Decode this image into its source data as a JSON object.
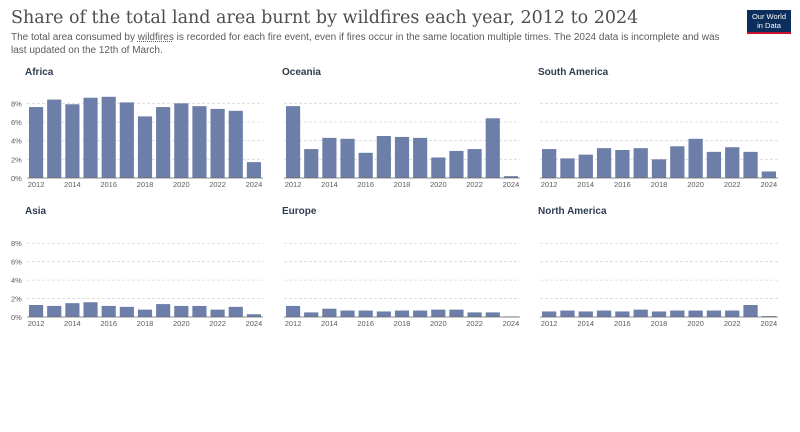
{
  "title": "Share of the total land area burnt by wildfires each year, 2012 to 2024",
  "subtitle_pre": "The total area consumed by ",
  "subtitle_link": "wildfires",
  "subtitle_post": " is recorded for each fire event, even if fires occur in the same location multiple times. The 2024 data is incomplete and was last updated on the 12th of March.",
  "logo_line1": "Our World",
  "logo_line2": "in Data",
  "colors": {
    "bar": "#6d7fa8",
    "grid": "#d9d9d9",
    "axis": "#666666",
    "panel_title": "#2d3c50",
    "tick": "#5b5b5b"
  },
  "chart_data": [
    {
      "type": "bar",
      "title": "Africa",
      "ylim": [
        0,
        9
      ],
      "yticks": [
        "0%",
        "2%",
        "4%",
        "6%",
        "8%"
      ],
      "categories": [
        "2012",
        "2013",
        "2014",
        "2015",
        "2016",
        "2017",
        "2018",
        "2019",
        "2020",
        "2021",
        "2022",
        "2023",
        "2024"
      ],
      "xtick_labels": [
        "2012",
        "2014",
        "2016",
        "2018",
        "2020",
        "2022",
        "2024"
      ],
      "values": [
        7.6,
        8.4,
        7.9,
        8.6,
        8.7,
        8.1,
        6.6,
        7.6,
        8.0,
        7.7,
        7.4,
        7.2,
        1.7
      ]
    },
    {
      "type": "bar",
      "title": "Oceania",
      "ylim": [
        0,
        9
      ],
      "yticks": [
        "0%",
        "2%",
        "4%",
        "6%",
        "8%"
      ],
      "categories": [
        "2012",
        "2013",
        "2014",
        "2015",
        "2016",
        "2017",
        "2018",
        "2019",
        "2020",
        "2021",
        "2022",
        "2023",
        "2024"
      ],
      "xtick_labels": [
        "2012",
        "2014",
        "2016",
        "2018",
        "2020",
        "2022",
        "2024"
      ],
      "values": [
        7.7,
        3.1,
        4.3,
        4.2,
        2.7,
        4.5,
        4.4,
        4.3,
        2.2,
        2.9,
        3.1,
        6.4,
        0.2
      ]
    },
    {
      "type": "bar",
      "title": "South America",
      "ylim": [
        0,
        9
      ],
      "yticks": [
        "0%",
        "2%",
        "4%",
        "6%",
        "8%"
      ],
      "categories": [
        "2012",
        "2013",
        "2014",
        "2015",
        "2016",
        "2017",
        "2018",
        "2019",
        "2020",
        "2021",
        "2022",
        "2023",
        "2024"
      ],
      "xtick_labels": [
        "2012",
        "2014",
        "2016",
        "2018",
        "2020",
        "2022",
        "2024"
      ],
      "values": [
        3.1,
        2.1,
        2.5,
        3.2,
        3.0,
        3.2,
        2.0,
        3.4,
        4.2,
        2.8,
        3.3,
        2.8,
        0.7
      ]
    },
    {
      "type": "bar",
      "title": "Asia",
      "ylim": [
        0,
        9
      ],
      "yticks": [
        "0%",
        "2%",
        "4%",
        "6%",
        "8%"
      ],
      "categories": [
        "2012",
        "2013",
        "2014",
        "2015",
        "2016",
        "2017",
        "2018",
        "2019",
        "2020",
        "2021",
        "2022",
        "2023",
        "2024"
      ],
      "xtick_labels": [
        "2012",
        "2014",
        "2016",
        "2018",
        "2020",
        "2022",
        "2024"
      ],
      "values": [
        1.3,
        1.2,
        1.5,
        1.6,
        1.2,
        1.1,
        0.8,
        1.4,
        1.2,
        1.2,
        0.8,
        1.1,
        0.3
      ]
    },
    {
      "type": "bar",
      "title": "Europe",
      "ylim": [
        0,
        9
      ],
      "yticks": [
        "0%",
        "2%",
        "4%",
        "6%",
        "8%"
      ],
      "categories": [
        "2012",
        "2013",
        "2014",
        "2015",
        "2016",
        "2017",
        "2018",
        "2019",
        "2020",
        "2021",
        "2022",
        "2023",
        "2024"
      ],
      "xtick_labels": [
        "2012",
        "2014",
        "2016",
        "2018",
        "2020",
        "2022",
        "2024"
      ],
      "values": [
        1.2,
        0.5,
        0.9,
        0.7,
        0.7,
        0.6,
        0.7,
        0.7,
        0.8,
        0.8,
        0.5,
        0.5,
        0.05
      ]
    },
    {
      "type": "bar",
      "title": "North America",
      "ylim": [
        0,
        9
      ],
      "yticks": [
        "0%",
        "2%",
        "4%",
        "6%",
        "8%"
      ],
      "categories": [
        "2012",
        "2013",
        "2014",
        "2015",
        "2016",
        "2017",
        "2018",
        "2019",
        "2020",
        "2021",
        "2022",
        "2023",
        "2024"
      ],
      "xtick_labels": [
        "2012",
        "2014",
        "2016",
        "2018",
        "2020",
        "2022",
        "2024"
      ],
      "values": [
        0.6,
        0.7,
        0.6,
        0.7,
        0.6,
        0.8,
        0.6,
        0.7,
        0.7,
        0.7,
        0.7,
        1.3,
        0.1
      ]
    }
  ]
}
